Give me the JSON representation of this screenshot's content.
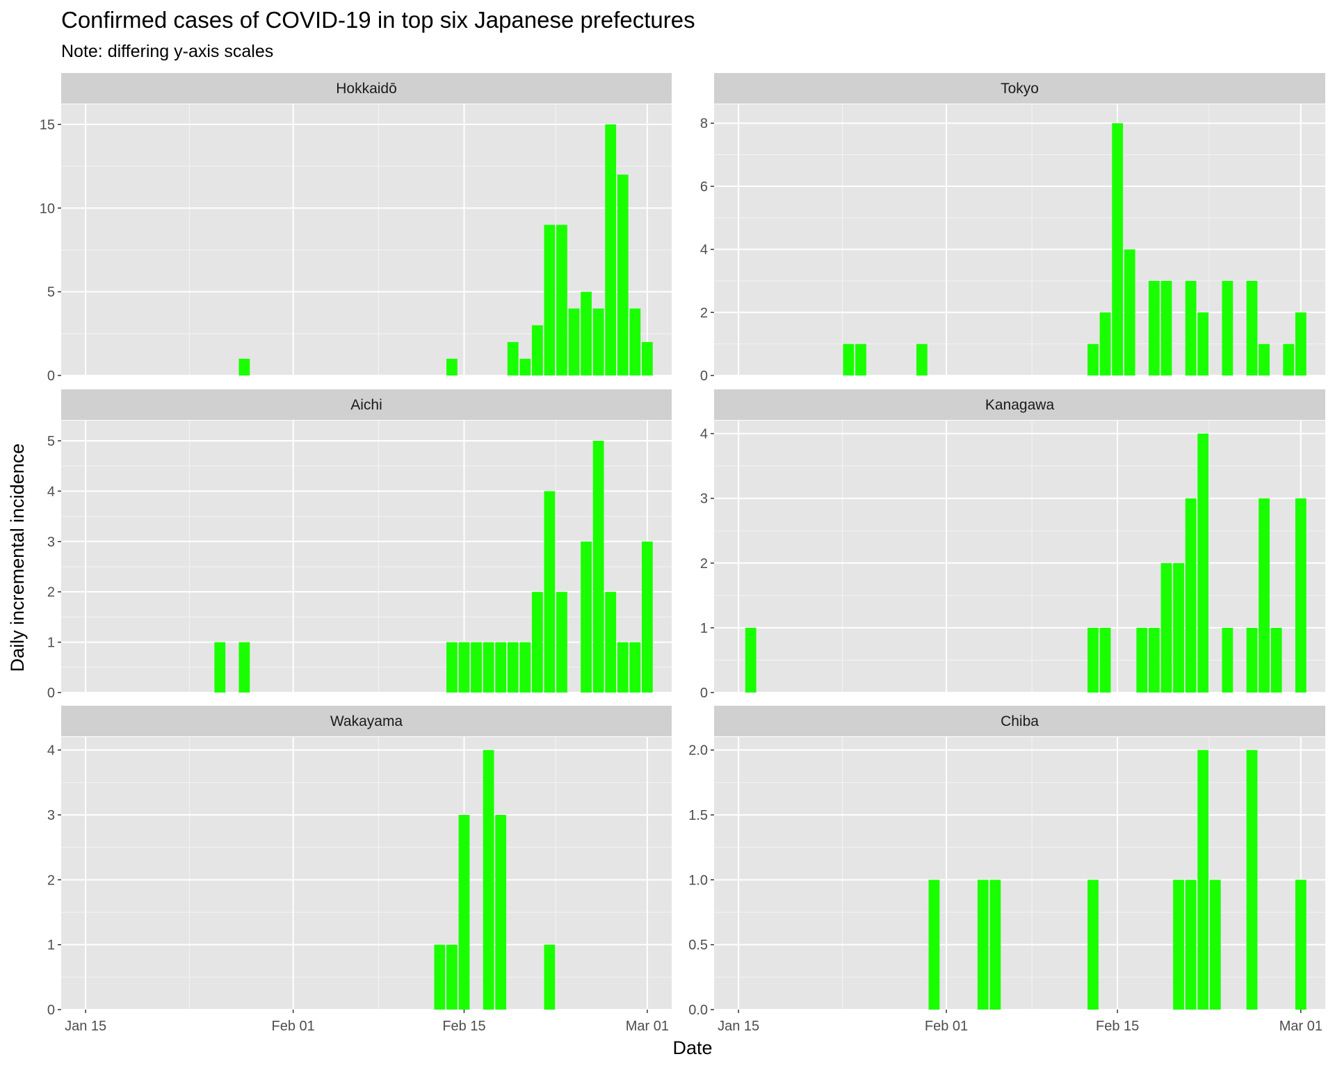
{
  "chart_data": {
    "type": "bar",
    "title": "Confirmed cases of COVID-19 in top six Japanese prefectures",
    "subtitle": "Note: differing y-axis scales",
    "xlabel": "Date",
    "ylabel": "Daily incremental incidence",
    "bar_color": "#1aff00",
    "panel_background": "#e5e5e5",
    "strip_background": "#d0d0d0",
    "grid": true,
    "x_ticks": [
      "Jan 15",
      "Feb 01",
      "Feb 15",
      "Mar 01"
    ],
    "x_range": [
      "2020-01-13",
      "2020-03-03"
    ],
    "panels": [
      {
        "name": "Hokkaidō",
        "ylim": [
          0,
          16.2
        ],
        "y_ticks": [
          "0",
          "5",
          "10",
          "15"
        ],
        "bars": [
          {
            "x": "2020-01-28",
            "y": 1
          },
          {
            "x": "2020-02-14",
            "y": 1
          },
          {
            "x": "2020-02-19",
            "y": 2
          },
          {
            "x": "2020-02-20",
            "y": 1
          },
          {
            "x": "2020-02-21",
            "y": 3
          },
          {
            "x": "2020-02-22",
            "y": 9
          },
          {
            "x": "2020-02-23",
            "y": 9
          },
          {
            "x": "2020-02-24",
            "y": 4
          },
          {
            "x": "2020-02-25",
            "y": 5
          },
          {
            "x": "2020-02-26",
            "y": 4
          },
          {
            "x": "2020-02-27",
            "y": 15
          },
          {
            "x": "2020-02-28",
            "y": 12
          },
          {
            "x": "2020-02-29",
            "y": 4
          },
          {
            "x": "2020-03-01",
            "y": 2
          }
        ]
      },
      {
        "name": "Tokyo",
        "ylim": [
          0,
          8.6
        ],
        "y_ticks": [
          "0",
          "2",
          "4",
          "6",
          "8"
        ],
        "bars": [
          {
            "x": "2020-01-24",
            "y": 1
          },
          {
            "x": "2020-01-25",
            "y": 1
          },
          {
            "x": "2020-01-30",
            "y": 1
          },
          {
            "x": "2020-02-13",
            "y": 1
          },
          {
            "x": "2020-02-14",
            "y": 2
          },
          {
            "x": "2020-02-15",
            "y": 8
          },
          {
            "x": "2020-02-16",
            "y": 4
          },
          {
            "x": "2020-02-18",
            "y": 3
          },
          {
            "x": "2020-02-19",
            "y": 3
          },
          {
            "x": "2020-02-21",
            "y": 3
          },
          {
            "x": "2020-02-22",
            "y": 2
          },
          {
            "x": "2020-02-24",
            "y": 3
          },
          {
            "x": "2020-02-26",
            "y": 3
          },
          {
            "x": "2020-02-27",
            "y": 1
          },
          {
            "x": "2020-02-29",
            "y": 1
          },
          {
            "x": "2020-03-01",
            "y": 2
          }
        ]
      },
      {
        "name": "Aichi",
        "ylim": [
          0,
          5.4
        ],
        "y_ticks": [
          "0",
          "1",
          "2",
          "3",
          "4",
          "5"
        ],
        "bars": [
          {
            "x": "2020-01-26",
            "y": 1
          },
          {
            "x": "2020-01-28",
            "y": 1
          },
          {
            "x": "2020-02-14",
            "y": 1
          },
          {
            "x": "2020-02-15",
            "y": 1
          },
          {
            "x": "2020-02-16",
            "y": 1
          },
          {
            "x": "2020-02-17",
            "y": 1
          },
          {
            "x": "2020-02-18",
            "y": 1
          },
          {
            "x": "2020-02-19",
            "y": 1
          },
          {
            "x": "2020-02-20",
            "y": 1
          },
          {
            "x": "2020-02-21",
            "y": 2
          },
          {
            "x": "2020-02-22",
            "y": 4
          },
          {
            "x": "2020-02-23",
            "y": 2
          },
          {
            "x": "2020-02-25",
            "y": 3
          },
          {
            "x": "2020-02-26",
            "y": 5
          },
          {
            "x": "2020-02-27",
            "y": 2
          },
          {
            "x": "2020-02-28",
            "y": 1
          },
          {
            "x": "2020-02-29",
            "y": 1
          },
          {
            "x": "2020-03-01",
            "y": 3
          }
        ]
      },
      {
        "name": "Kanagawa",
        "ylim": [
          0,
          4.2
        ],
        "y_ticks": [
          "0",
          "1",
          "2",
          "3",
          "4"
        ],
        "bars": [
          {
            "x": "2020-01-16",
            "y": 1
          },
          {
            "x": "2020-02-13",
            "y": 1
          },
          {
            "x": "2020-02-14",
            "y": 1
          },
          {
            "x": "2020-02-17",
            "y": 1
          },
          {
            "x": "2020-02-18",
            "y": 1
          },
          {
            "x": "2020-02-19",
            "y": 2
          },
          {
            "x": "2020-02-20",
            "y": 2
          },
          {
            "x": "2020-02-21",
            "y": 3
          },
          {
            "x": "2020-02-22",
            "y": 4
          },
          {
            "x": "2020-02-24",
            "y": 1
          },
          {
            "x": "2020-02-26",
            "y": 1
          },
          {
            "x": "2020-02-27",
            "y": 3
          },
          {
            "x": "2020-02-28",
            "y": 1
          },
          {
            "x": "2020-03-01",
            "y": 3
          }
        ]
      },
      {
        "name": "Wakayama",
        "ylim": [
          0,
          4.2
        ],
        "y_ticks": [
          "0",
          "1",
          "2",
          "3",
          "4"
        ],
        "bars": [
          {
            "x": "2020-02-13",
            "y": 1
          },
          {
            "x": "2020-02-14",
            "y": 1
          },
          {
            "x": "2020-02-15",
            "y": 3
          },
          {
            "x": "2020-02-17",
            "y": 4
          },
          {
            "x": "2020-02-18",
            "y": 3
          },
          {
            "x": "2020-02-22",
            "y": 1
          }
        ]
      },
      {
        "name": "Chiba",
        "ylim": [
          0,
          2.1
        ],
        "y_ticks": [
          "0.0",
          "0.5",
          "1.0",
          "1.5",
          "2.0"
        ],
        "bars": [
          {
            "x": "2020-01-31",
            "y": 1
          },
          {
            "x": "2020-02-04",
            "y": 1
          },
          {
            "x": "2020-02-05",
            "y": 1
          },
          {
            "x": "2020-02-13",
            "y": 1
          },
          {
            "x": "2020-02-20",
            "y": 1
          },
          {
            "x": "2020-02-21",
            "y": 1
          },
          {
            "x": "2020-02-22",
            "y": 2
          },
          {
            "x": "2020-02-23",
            "y": 1
          },
          {
            "x": "2020-02-26",
            "y": 2
          },
          {
            "x": "2020-03-01",
            "y": 1
          }
        ]
      }
    ]
  }
}
